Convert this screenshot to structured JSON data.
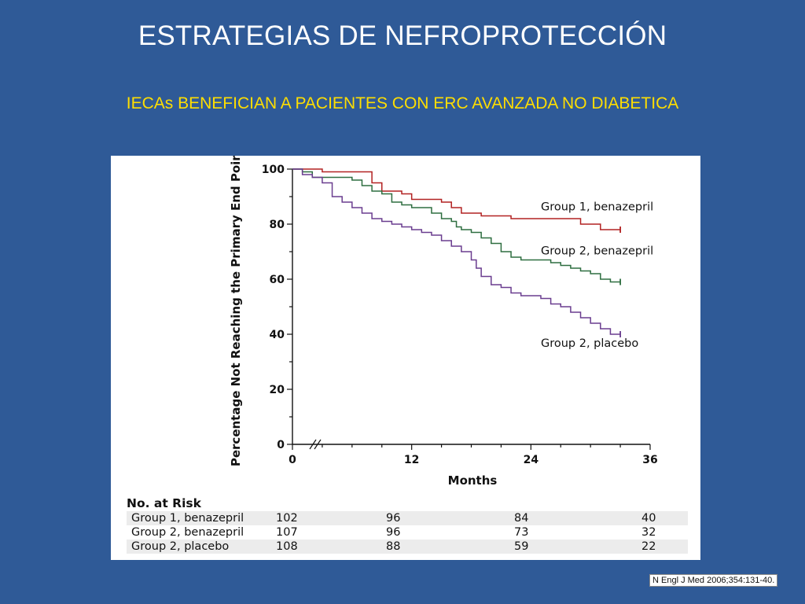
{
  "slide": {
    "title": "ESTRATEGIAS DE NEFROPROTECCIÓN",
    "subtitle": "IECAs BENEFICIAN A PACIENTES CON ERC AVANZADA NO DIABETICA",
    "citation": "N Engl J Med 2006;354:131-40."
  },
  "chart_data": {
    "type": "line",
    "title": "",
    "xlabel": "Months",
    "ylabel": "Percentage Not Reaching the Primary End Point",
    "xlim": [
      0,
      36
    ],
    "ylim": [
      0,
      100
    ],
    "x_ticks": [
      0,
      12,
      24,
      36
    ],
    "y_ticks": [
      0,
      20,
      40,
      60,
      80,
      100
    ],
    "grid": false,
    "series": [
      {
        "name": "Group 1, benazepril",
        "color": "#b22222",
        "points": [
          [
            0,
            100
          ],
          [
            2,
            100
          ],
          [
            3,
            99
          ],
          [
            7,
            99
          ],
          [
            8,
            95
          ],
          [
            9,
            92
          ],
          [
            11,
            91
          ],
          [
            12,
            89
          ],
          [
            15,
            88
          ],
          [
            16,
            86
          ],
          [
            17,
            84
          ],
          [
            19,
            83
          ],
          [
            21,
            83
          ],
          [
            22,
            82
          ],
          [
            26,
            82
          ],
          [
            27,
            82
          ],
          [
            28,
            82
          ],
          [
            29,
            80
          ],
          [
            30,
            80
          ],
          [
            31,
            78
          ],
          [
            33,
            78
          ]
        ]
      },
      {
        "name": "Group 2, benazepril",
        "color": "#2e6e40",
        "points": [
          [
            0,
            100
          ],
          [
            1,
            99
          ],
          [
            2,
            97
          ],
          [
            3,
            97
          ],
          [
            5,
            97
          ],
          [
            6,
            96
          ],
          [
            7,
            94
          ],
          [
            8,
            92
          ],
          [
            9,
            91
          ],
          [
            10,
            88
          ],
          [
            11,
            87
          ],
          [
            12,
            86
          ],
          [
            13,
            86
          ],
          [
            14,
            84
          ],
          [
            15,
            82
          ],
          [
            16,
            81
          ],
          [
            16.5,
            79
          ],
          [
            17,
            78
          ],
          [
            18,
            77
          ],
          [
            19,
            75
          ],
          [
            20,
            73
          ],
          [
            21,
            70
          ],
          [
            22,
            68
          ],
          [
            23,
            67
          ],
          [
            25,
            67
          ],
          [
            26,
            66
          ],
          [
            27,
            65
          ],
          [
            28,
            64
          ],
          [
            29,
            63
          ],
          [
            30,
            62
          ],
          [
            31,
            60
          ],
          [
            32,
            59
          ],
          [
            33,
            59
          ]
        ]
      },
      {
        "name": "Group 2, placebo",
        "color": "#6a3d8f",
        "points": [
          [
            0,
            100
          ],
          [
            1,
            98
          ],
          [
            2,
            97
          ],
          [
            3,
            95
          ],
          [
            4,
            90
          ],
          [
            5,
            88
          ],
          [
            6,
            86
          ],
          [
            7,
            84
          ],
          [
            8,
            82
          ],
          [
            9,
            81
          ],
          [
            10,
            80
          ],
          [
            11,
            79
          ],
          [
            12,
            78
          ],
          [
            13,
            77
          ],
          [
            14,
            76
          ],
          [
            15,
            74
          ],
          [
            16,
            72
          ],
          [
            17,
            70
          ],
          [
            18,
            67
          ],
          [
            18.5,
            64
          ],
          [
            19,
            61
          ],
          [
            20,
            58
          ],
          [
            21,
            57
          ],
          [
            22,
            55
          ],
          [
            23,
            54
          ],
          [
            25,
            53
          ],
          [
            26,
            51
          ],
          [
            27,
            50
          ],
          [
            28,
            48
          ],
          [
            29,
            46
          ],
          [
            30,
            44
          ],
          [
            31,
            42
          ],
          [
            32,
            40
          ],
          [
            33,
            40
          ]
        ]
      }
    ],
    "series_labels": [
      {
        "text": "Group 1, benazepril",
        "x": 25,
        "y": 85
      },
      {
        "text": "Group 2, benazepril",
        "x": 25,
        "y": 69
      },
      {
        "text": "Group 2, placebo",
        "x": 25,
        "y": 35.5
      }
    ]
  },
  "risk_table": {
    "heading": "No. at Risk",
    "rows": [
      {
        "group": "Group 1, benazepril",
        "counts": [
          "102",
          "96",
          "84",
          "40"
        ]
      },
      {
        "group": "Group 2, benazepril",
        "counts": [
          "107",
          "96",
          "73",
          "32"
        ]
      },
      {
        "group": "Group 2, placebo",
        "counts": [
          "108",
          "88",
          "59",
          "22"
        ]
      }
    ]
  }
}
